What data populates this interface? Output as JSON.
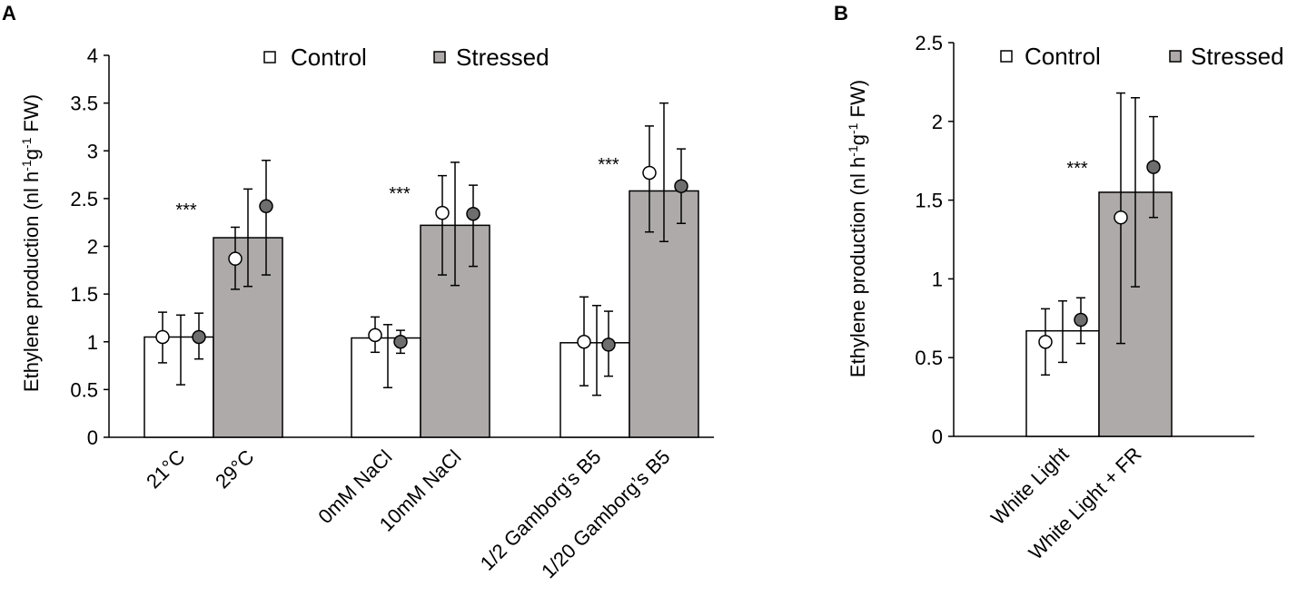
{
  "chart_data": [
    {
      "panel": "A",
      "type": "bar",
      "title": "",
      "ylabel": "Ethylene production (nl h-1g-1 FW)",
      "ylabel_parts": [
        "Ethylene production (nl h",
        "-1",
        "g",
        "-1",
        " FW)"
      ],
      "ylim": [
        0,
        4
      ],
      "yticks": [
        "0",
        "0.5",
        "1",
        "1.5",
        "2",
        "2.5",
        "3",
        "3.5",
        "4"
      ],
      "yvalues": [
        0,
        0.5,
        1,
        1.5,
        2,
        2.5,
        3,
        3.5,
        4
      ],
      "legend": {
        "position": "top",
        "entries": [
          {
            "name": "Control",
            "color": "#ffffff"
          },
          {
            "name": "Stressed",
            "color": "#aeaaaa"
          }
        ]
      },
      "annotation": "***",
      "groups": [
        {
          "categories": [
            "21°C",
            "29°C"
          ],
          "bars": [
            {
              "type": "control",
              "value": 1.05,
              "err_low": 0.79,
              "err_high": 1.3,
              "points": [
                {
                  "type": "control",
                  "value": 1.05,
                  "err_low": 0.78,
                  "err_high": 1.31
                },
                {
                  "type": "stressed",
                  "value": 1.05,
                  "err_low": 0.82,
                  "err_high": 1.3
                }
              ]
            },
            {
              "type": "stressed",
              "value": 2.09,
              "err_low": 1.58,
              "err_high": 2.6,
              "points": [
                {
                  "type": "control",
                  "value": 1.87,
                  "err_low": 1.55,
                  "err_high": 2.2
                },
                {
                  "type": "stressed",
                  "value": 2.42,
                  "err_low": 1.7,
                  "err_high": 2.9
                }
              ]
            }
          ],
          "inner_err": [
            0.55,
            1.28
          ]
        },
        {
          "categories": [
            "0mM NaCl",
            "10mM NaCl"
          ],
          "bars": [
            {
              "type": "control",
              "value": 1.04,
              "err_low": 0.88,
              "err_high": 1.19,
              "points": [
                {
                  "type": "control",
                  "value": 1.07,
                  "err_low": 0.89,
                  "err_high": 1.26
                },
                {
                  "type": "stressed",
                  "value": 1.0,
                  "err_low": 0.88,
                  "err_high": 1.12
                }
              ]
            },
            {
              "type": "stressed",
              "value": 2.22,
              "err_low": 1.59,
              "err_high": 2.88,
              "points": [
                {
                  "type": "control",
                  "value": 2.35,
                  "err_low": 1.7,
                  "err_high": 2.74
                },
                {
                  "type": "stressed",
                  "value": 2.34,
                  "err_low": 1.79,
                  "err_high": 2.64
                }
              ]
            }
          ],
          "inner_err": [
            0.52,
            1.18
          ]
        },
        {
          "categories": [
            "1/2 Gamborg’s B5",
            "1/20 Gamborg’s B5"
          ],
          "bars": [
            {
              "type": "control",
              "value": 0.99,
              "err_low": 0.44,
              "err_high": 1.38,
              "points": [
                {
                  "type": "control",
                  "value": 1.0,
                  "err_low": 0.54,
                  "err_high": 1.47
                },
                {
                  "type": "stressed",
                  "value": 0.97,
                  "err_low": 0.64,
                  "err_high": 1.32
                }
              ]
            },
            {
              "type": "stressed",
              "value": 2.58,
              "err_low": 2.05,
              "err_high": 3.5,
              "points": [
                {
                  "type": "control",
                  "value": 2.77,
                  "err_low": 2.15,
                  "err_high": 3.26
                },
                {
                  "type": "stressed",
                  "value": 2.63,
                  "err_low": 2.24,
                  "err_high": 3.02
                }
              ]
            }
          ],
          "inner_err": [
            0.44,
            1.38
          ]
        }
      ]
    },
    {
      "panel": "B",
      "type": "bar",
      "title": "",
      "ylabel": "Ethylene production (nl h-1g-1 FW)",
      "ylabel_parts": [
        "Ethylene production (nl h",
        "-1",
        "g",
        "-1",
        " FW)"
      ],
      "ylim": [
        0,
        2.5
      ],
      "yticks": [
        "0",
        "0.5",
        "1",
        "1.5",
        "2",
        "2.5"
      ],
      "yvalues": [
        0,
        0.5,
        1,
        1.5,
        2,
        2.5
      ],
      "legend": {
        "position": "top",
        "entries": [
          {
            "name": "Control",
            "color": "#ffffff"
          },
          {
            "name": "Stressed",
            "color": "#aeaaaa"
          }
        ]
      },
      "annotation": "***",
      "groups": [
        {
          "categories": [
            "White Light",
            "White Light + FR"
          ],
          "bars": [
            {
              "type": "control",
              "value": 0.67,
              "err_low": 0.47,
              "err_high": 0.86,
              "points": [
                {
                  "type": "control",
                  "value": 0.6,
                  "err_low": 0.39,
                  "err_high": 0.81
                },
                {
                  "type": "stressed",
                  "value": 0.74,
                  "err_low": 0.59,
                  "err_high": 0.88
                }
              ]
            },
            {
              "type": "stressed",
              "value": 1.55,
              "err_low": 0.95,
              "err_high": 2.15,
              "points": [
                {
                  "type": "control",
                  "value": 1.39,
                  "err_low": 0.59,
                  "err_high": 2.18
                },
                {
                  "type": "stressed",
                  "value": 1.71,
                  "err_low": 1.39,
                  "err_high": 2.03
                }
              ]
            }
          ],
          "inner_err": [
            0.47,
            0.86
          ]
        }
      ]
    }
  ]
}
